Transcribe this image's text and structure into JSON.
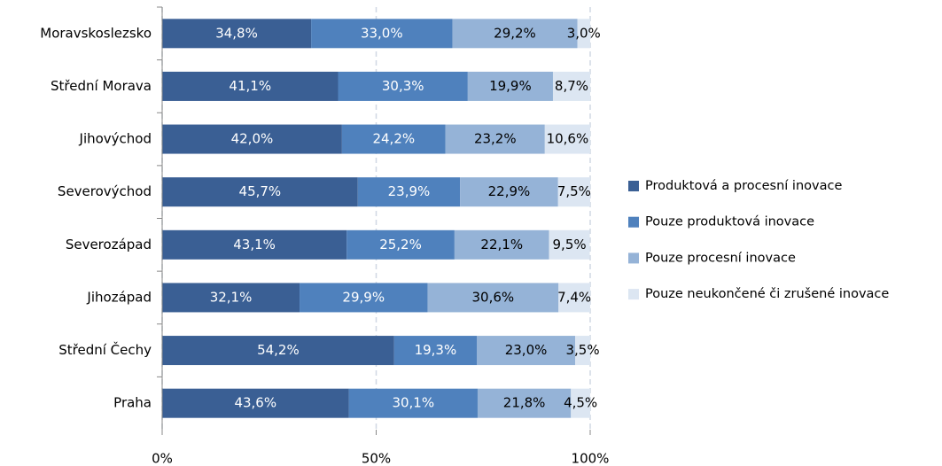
{
  "chart_data": {
    "type": "stacked_bar_horizontal",
    "categories": [
      "Moravskoslezsko",
      "Střední Morava",
      "Jihovýchod",
      "Severovýchod",
      "Severozápad",
      "Jihozápad",
      "Střední Čechy",
      "Praha"
    ],
    "series": [
      {
        "name": "Produktová a procesní inovace",
        "color": "#3a5f94",
        "label_color": "#ffffff",
        "values": [
          34.8,
          41.1,
          42.0,
          45.7,
          43.1,
          32.1,
          54.2,
          43.6
        ],
        "value_labels": [
          "34,8%",
          "41,1%",
          "42,0%",
          "45,7%",
          "43,1%",
          "32,1%",
          "54,2%",
          "43,6%"
        ]
      },
      {
        "name": "Pouze produktová inovace",
        "color": "#4f81bd",
        "label_color": "#ffffff",
        "values": [
          33.0,
          30.3,
          24.2,
          23.9,
          25.2,
          29.9,
          19.3,
          30.1
        ],
        "value_labels": [
          "33,0%",
          "30,3%",
          "24,2%",
          "23,9%",
          "25,2%",
          "29,9%",
          "19,3%",
          "30,1%"
        ]
      },
      {
        "name": "Pouze procesní inovace",
        "color": "#95b3d7",
        "label_color": "#000000",
        "values": [
          29.2,
          19.9,
          23.2,
          22.9,
          22.1,
          30.6,
          23.0,
          21.8
        ],
        "value_labels": [
          "29,2%",
          "19,9%",
          "23,2%",
          "22,9%",
          "22,1%",
          "30,6%",
          "23,0%",
          "21,8%"
        ]
      },
      {
        "name": "Pouze neukončené či zrušené inovace",
        "color": "#dce6f2",
        "label_color": "#000000",
        "values": [
          3.0,
          8.7,
          10.6,
          7.5,
          9.5,
          7.4,
          3.5,
          4.5
        ],
        "value_labels": [
          "3,0%",
          "8,7%",
          "10,6%",
          "7,5%",
          "9,5%",
          "7,4%",
          "3,5%",
          "4,5%"
        ]
      }
    ],
    "xlim": [
      0,
      100
    ],
    "xticks": [
      {
        "value": 0,
        "label": "0%"
      },
      {
        "value": 50,
        "label": "50%"
      },
      {
        "value": 100,
        "label": "100%"
      }
    ],
    "grid": true,
    "legend": "right"
  }
}
